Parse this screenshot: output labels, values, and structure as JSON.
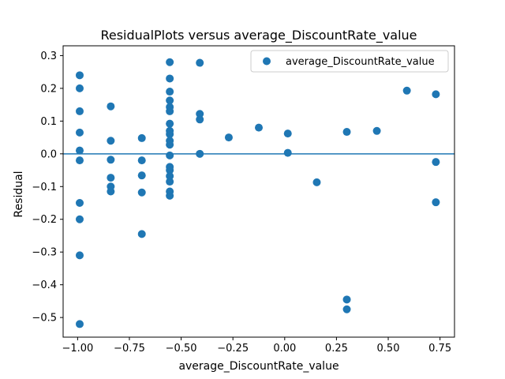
{
  "chart_data": {
    "type": "scatter",
    "title": "ResidualPlots versus average_DiscountRate_value",
    "xlabel": "average_DiscountRate_value",
    "ylabel": "Residual",
    "xlim": [
      -1.07,
      0.82
    ],
    "ylim": [
      -0.56,
      0.33
    ],
    "x_ticks": [
      -1.0,
      -0.75,
      -0.5,
      -0.25,
      0.0,
      0.25,
      0.5,
      0.75
    ],
    "x_tick_labels": [
      "−1.00",
      "−0.75",
      "−0.50",
      "−0.25",
      "0.00",
      "0.25",
      "0.50",
      "0.75"
    ],
    "y_ticks": [
      0.3,
      0.2,
      0.1,
      0.0,
      -0.1,
      -0.2,
      -0.3,
      -0.4,
      -0.5
    ],
    "y_tick_labels": [
      "0.3",
      "0.2",
      "0.1",
      "0.0",
      "−0.1",
      "−0.2",
      "−0.3",
      "−0.4",
      "−0.5"
    ],
    "reference_line_y": 0.0,
    "grid": false,
    "legend_position": "top-right",
    "series": [
      {
        "name": "average_DiscountRate_value",
        "color": "#1f77b4",
        "points": [
          [
            -0.99,
            0.24
          ],
          [
            -0.99,
            0.2
          ],
          [
            -0.99,
            0.13
          ],
          [
            -0.99,
            0.065
          ],
          [
            -0.99,
            0.01
          ],
          [
            -0.99,
            -0.02
          ],
          [
            -0.99,
            -0.15
          ],
          [
            -0.99,
            -0.2
          ],
          [
            -0.99,
            -0.31
          ],
          [
            -0.99,
            -0.52
          ],
          [
            -0.84,
            0.145
          ],
          [
            -0.84,
            0.04
          ],
          [
            -0.84,
            -0.018
          ],
          [
            -0.84,
            -0.073
          ],
          [
            -0.84,
            -0.1
          ],
          [
            -0.84,
            -0.115
          ],
          [
            -0.69,
            0.048
          ],
          [
            -0.69,
            -0.02
          ],
          [
            -0.69,
            -0.066
          ],
          [
            -0.69,
            -0.118
          ],
          [
            -0.69,
            -0.245
          ],
          [
            -0.555,
            0.28
          ],
          [
            -0.555,
            0.23
          ],
          [
            -0.555,
            0.19
          ],
          [
            -0.555,
            0.163
          ],
          [
            -0.555,
            0.143
          ],
          [
            -0.555,
            0.13
          ],
          [
            -0.555,
            0.092
          ],
          [
            -0.555,
            0.07
          ],
          [
            -0.555,
            0.06
          ],
          [
            -0.555,
            0.04
          ],
          [
            -0.555,
            0.028
          ],
          [
            -0.555,
            -0.005
          ],
          [
            -0.555,
            -0.04
          ],
          [
            -0.555,
            -0.05
          ],
          [
            -0.555,
            -0.068
          ],
          [
            -0.555,
            -0.085
          ],
          [
            -0.555,
            -0.115
          ],
          [
            -0.555,
            -0.128
          ],
          [
            -0.41,
            0.278
          ],
          [
            -0.41,
            0.122
          ],
          [
            -0.41,
            0.105
          ],
          [
            -0.41,
            0.0
          ],
          [
            -0.27,
            0.05
          ],
          [
            -0.125,
            0.08
          ],
          [
            0.015,
            0.062
          ],
          [
            0.015,
            0.003
          ],
          [
            0.155,
            -0.087
          ],
          [
            0.3,
            0.067
          ],
          [
            0.3,
            -0.445
          ],
          [
            0.3,
            -0.475
          ],
          [
            0.445,
            0.07
          ],
          [
            0.59,
            0.193
          ],
          [
            0.73,
            0.182
          ],
          [
            0.73,
            -0.025
          ],
          [
            0.73,
            -0.148
          ]
        ]
      }
    ]
  }
}
